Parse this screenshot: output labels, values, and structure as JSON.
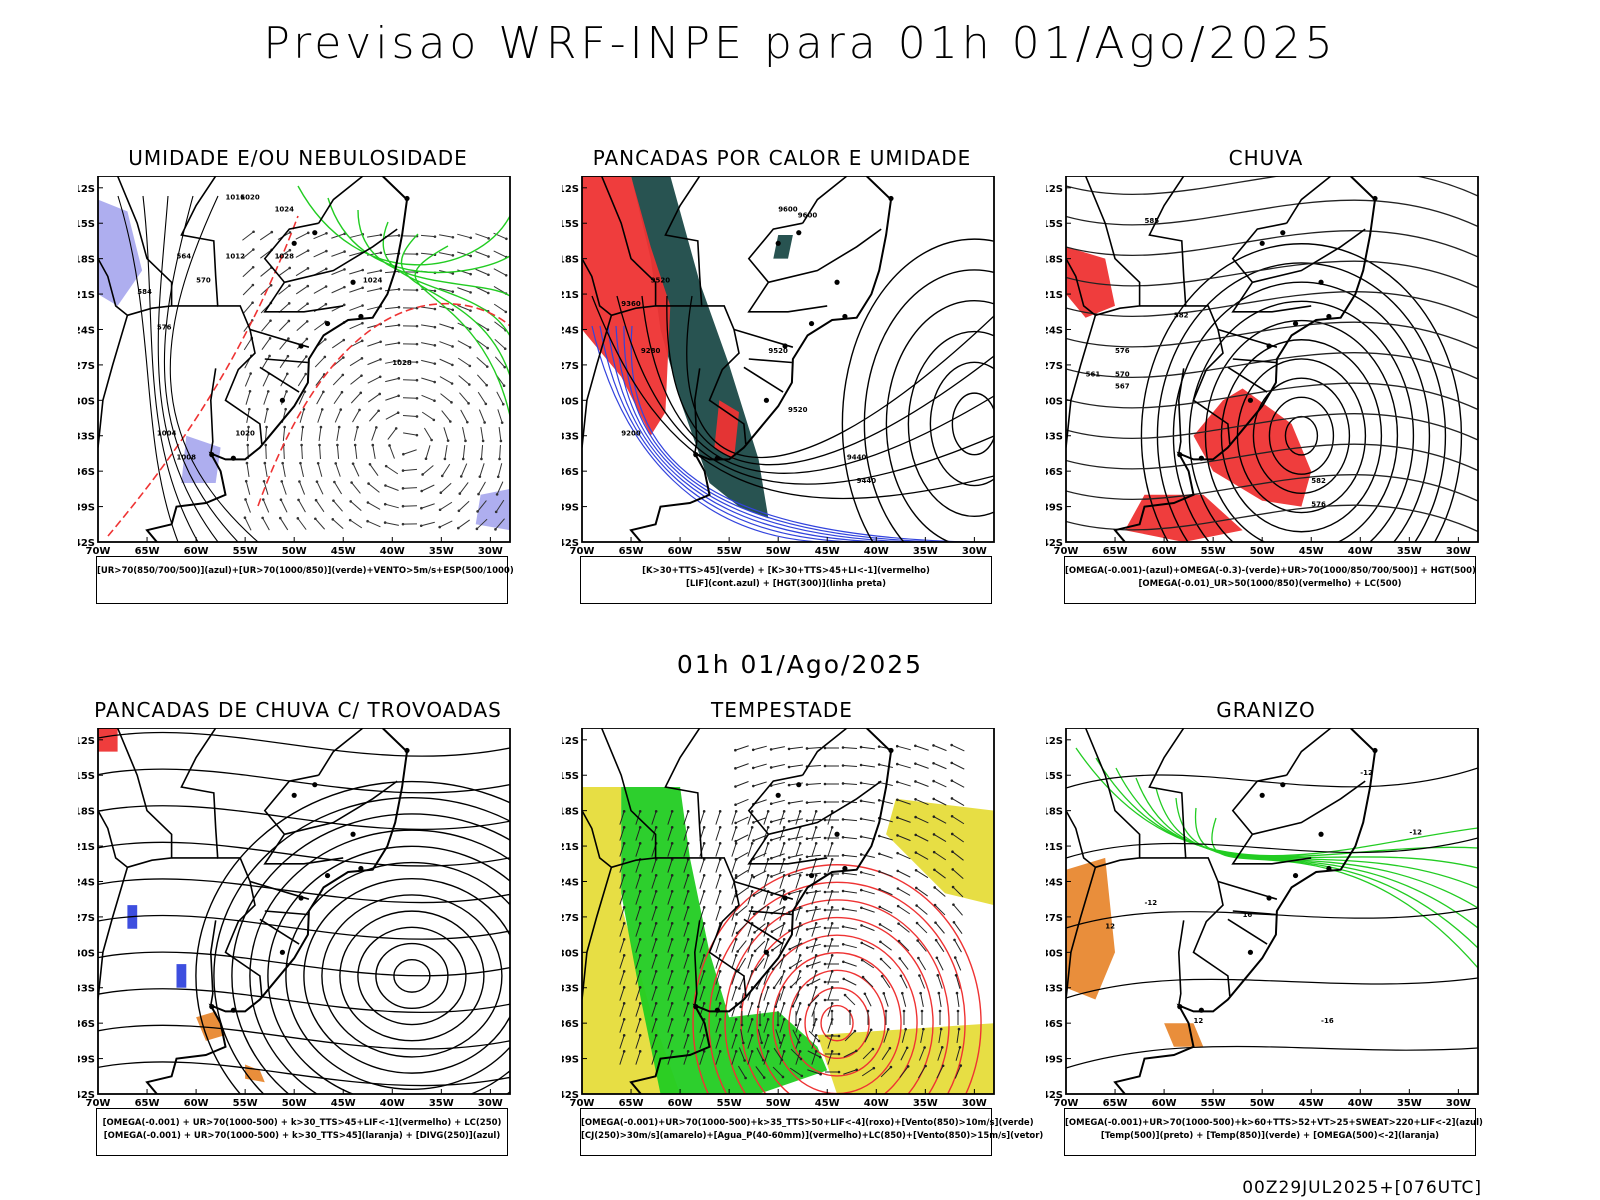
{
  "header": {
    "title": "Previsao WRF-INPE  para 01h 01/Ago/2025"
  },
  "middle": {
    "date_label": "01h 01/Ago/2025"
  },
  "footer": {
    "run_label": "00Z29JUL2025+[076UTC]"
  },
  "axes": {
    "lat_ticks": [
      "12S",
      "15S",
      "18S",
      "21S",
      "24S",
      "27S",
      "30S",
      "33S",
      "36S",
      "39S",
      "42S"
    ],
    "lon_ticks": [
      "70W",
      "65W",
      "60W",
      "55W",
      "50W",
      "45W",
      "40W",
      "35W",
      "30W"
    ]
  },
  "colors": {
    "red": "#ee3333",
    "green": "#22cc22",
    "blue": "#3344dd",
    "darkteal": "#1c4a48",
    "yellow": "#e6dc3a",
    "orange": "#e88830",
    "lavender": "#aaaaee"
  },
  "panels": [
    {
      "title": "UMIDADE E/OU NEBULOSIDADE",
      "legend": [
        "[UR>70(850/700/500)](azul)+[UR>70(1000/850)](verde)+VENTO>5m/s+ESP(500/1000)"
      ],
      "contour_labels": [
        "1016",
        "1020",
        "1024",
        "1028",
        "1012",
        "1008",
        "1004",
        "1028",
        "1020",
        "1024",
        "564",
        "570",
        "576",
        "584"
      ]
    },
    {
      "title": "PANCADAS POR CALOR E UMIDADE",
      "legend": [
        "[K>30+TTS>45](verde) + [K>30+TTS>45+LI<-1](vermelho)",
        "[LIF](cont.azul) + [HGT(300)](linha preta)"
      ],
      "contour_labels": [
        "9600",
        "9600",
        "9520",
        "9440",
        "9360",
        "9280",
        "9200",
        "9520",
        "9520",
        "9440"
      ]
    },
    {
      "title": "CHUVA",
      "legend": [
        "[OMEGA(-0.001)-(azul)+OMEGA(-0.3)-(verde)+UR>70(1000/850/700/500)] + HGT(500)",
        "[OMEGA(-0.01)_UR>50(1000/850)(vermelho) + LC(500)"
      ],
      "contour_labels": [
        "582",
        "576",
        "570",
        "567",
        "561",
        "585",
        "582",
        "576"
      ]
    },
    {
      "title": "PANCADAS DE CHUVA C/ TROVOADAS",
      "legend": [
        "[OMEGA(-0.001) + UR>70(1000-500) + k>30_TTS>45+LIF<-1](vermelho) + LC(250)",
        "[OMEGA(-0.001) + UR>70(1000-500) + k>30_TTS>45](laranja) + [DIVG(250)](azul)"
      ],
      "contour_labels": []
    },
    {
      "title": "TEMPESTADE",
      "legend": [
        "[OMEGA(-0.001)+UR>70(1000-500)+k>35_TTS>50+LIF<-4](roxo)+[Vento(850)>10m/s](verde)",
        "[CJ(250)>30m/s](amarelo)+[Agua_P(40-60mm)](vermelho)+LC(850)+[Vento(850)>15m/s](vetor)"
      ],
      "contour_labels": []
    },
    {
      "title": "GRANIZO",
      "legend": [
        "[OMEGA(-0.001)+UR>70(1000-500)+k>60+TTS>52+VT>25+SWEAT>220+LIF<-2](azul)",
        "[Temp(500)](preto) + [Temp(850)](verde) + [OMEGA(500)<-2](laranja)"
      ],
      "contour_labels": [
        "-12",
        "-12",
        "-12",
        "-16",
        "12",
        "16",
        "12"
      ]
    }
  ]
}
